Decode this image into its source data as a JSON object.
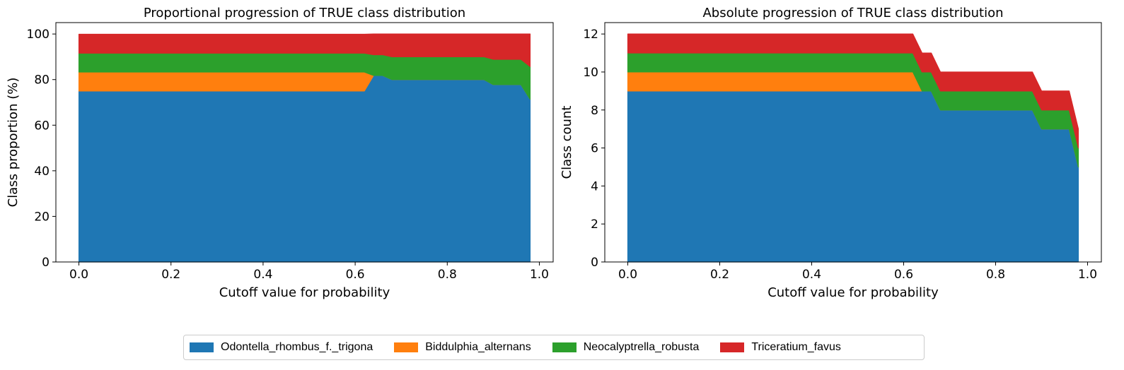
{
  "chart_data": [
    {
      "type": "area",
      "stacked": true,
      "title": "Proportional progression of TRUE class distribution",
      "xlabel": "Cutoff value for probability",
      "ylabel": "Class proportion (%)",
      "xlim": [
        -0.05,
        1.03
      ],
      "ylim": [
        0,
        105
      ],
      "xticks": [
        0.0,
        0.2,
        0.4,
        0.6,
        0.8,
        1.0
      ],
      "xtick_labels": [
        "0.0",
        "0.2",
        "0.4",
        "0.6",
        "0.8",
        "1.0"
      ],
      "yticks": [
        0,
        20,
        40,
        60,
        80,
        100
      ],
      "ytick_labels": [
        "0",
        "20",
        "40",
        "60",
        "80",
        "100"
      ],
      "grid": false,
      "x": [
        0.0,
        0.62,
        0.64,
        0.66,
        0.68,
        0.88,
        0.9,
        0.96,
        0.98
      ],
      "series": [
        {
          "name": "Odontella_rhombus_f._trigona",
          "values": [
            75.0,
            75.0,
            81.8,
            81.8,
            80.0,
            80.0,
            77.8,
            77.8,
            71.4
          ]
        },
        {
          "name": "Biddulphia_alternans",
          "values": [
            8.3,
            8.3,
            0,
            0,
            0,
            0,
            0,
            0,
            0
          ]
        },
        {
          "name": "Neocalyptrella_robusta",
          "values": [
            8.3,
            8.3,
            9.1,
            9.1,
            10.0,
            10.0,
            11.1,
            11.1,
            14.3
          ]
        },
        {
          "name": "Triceratium_favus",
          "values": [
            8.3,
            8.3,
            9.1,
            9.1,
            10.0,
            10.0,
            11.1,
            11.1,
            14.3
          ]
        }
      ]
    },
    {
      "type": "area",
      "stacked": true,
      "title": "Absolute progression of TRUE class distribution",
      "xlabel": "Cutoff value for probability",
      "ylabel": "Class count",
      "xlim": [
        -0.05,
        1.03
      ],
      "ylim": [
        0,
        12.6
      ],
      "xticks": [
        0.0,
        0.2,
        0.4,
        0.6,
        0.8,
        1.0
      ],
      "xtick_labels": [
        "0.0",
        "0.2",
        "0.4",
        "0.6",
        "0.8",
        "1.0"
      ],
      "yticks": [
        0,
        2,
        4,
        6,
        8,
        10,
        12
      ],
      "ytick_labels": [
        "0",
        "2",
        "4",
        "6",
        "8",
        "10",
        "12"
      ],
      "grid": false,
      "x": [
        0.0,
        0.62,
        0.64,
        0.66,
        0.68,
        0.88,
        0.9,
        0.96,
        0.98
      ],
      "series": [
        {
          "name": "Odontella_rhombus_f._trigona",
          "values": [
            9,
            9,
            9,
            9,
            8,
            8,
            7,
            7,
            5
          ]
        },
        {
          "name": "Biddulphia_alternans",
          "values": [
            1,
            1,
            0,
            0,
            0,
            0,
            0,
            0,
            0
          ]
        },
        {
          "name": "Neocalyptrella_robusta",
          "values": [
            1,
            1,
            1,
            1,
            1,
            1,
            1,
            1,
            1
          ]
        },
        {
          "name": "Triceratium_favus",
          "values": [
            1,
            1,
            1,
            1,
            1,
            1,
            1,
            1,
            1
          ]
        }
      ]
    }
  ],
  "legend": {
    "placement": "bottom-center",
    "items": [
      {
        "label": "Odontella_rhombus_f._trigona",
        "color": "#1f77b4"
      },
      {
        "label": "Biddulphia_alternans",
        "color": "#ff7f0e"
      },
      {
        "label": "Neocalyptrella_robusta",
        "color": "#2ca02c"
      },
      {
        "label": "Triceratium_favus",
        "color": "#d62728"
      }
    ]
  }
}
